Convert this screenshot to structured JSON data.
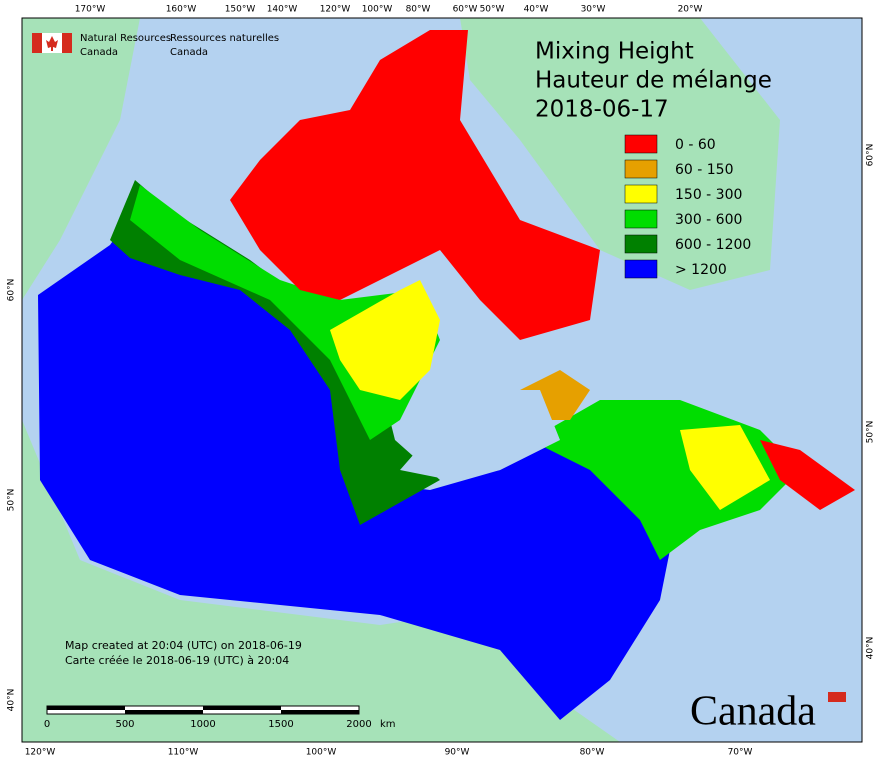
{
  "agency": {
    "en": [
      "Natural Resources",
      "Canada"
    ],
    "fr": [
      "Ressources naturelles",
      "Canada"
    ]
  },
  "title": [
    "Mixing Height",
    "Hauteur de mélange",
    "2018-06-17"
  ],
  "legend": [
    {
      "label": "0 - 60",
      "color": "#ff0000"
    },
    {
      "label": "60 - 150",
      "color": "#e6a000"
    },
    {
      "label": "150 - 300",
      "color": "#ffff00"
    },
    {
      "label": "300 - 600",
      "color": "#00dd00"
    },
    {
      "label": "600 - 1200",
      "color": "#008000"
    },
    {
      "label": "> 1200",
      "color": "#0000ff"
    }
  ],
  "graticule": {
    "top": [
      "170°W",
      "160°W",
      "150°W",
      "140°W",
      "120°W",
      "100°W",
      "80°W",
      "60°W",
      "50°W",
      "40°W",
      "30°W",
      "20°W"
    ],
    "bottom": [
      "120°W",
      "110°W",
      "100°W",
      "90°W",
      "80°W",
      "70°W"
    ],
    "left": [
      "60°N",
      "50°N",
      "40°N"
    ],
    "right": [
      "60°N",
      "50°N",
      "40°N"
    ]
  },
  "credits": [
    "Map created at 20:04 (UTC) on 2018-06-19",
    "Carte créée le 2018-06-19 (UTC) à 20:04"
  ],
  "scale_bar": {
    "ticks": [
      "0",
      "500",
      "1000",
      "1500",
      "2000"
    ],
    "unit": "km"
  },
  "wordmark": "Canada"
}
